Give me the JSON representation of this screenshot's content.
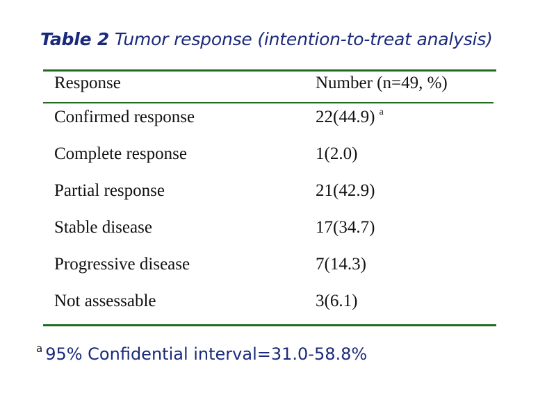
{
  "title": {
    "label": "Table 2",
    "text": "Tumor response (intention-to-treat analysis)"
  },
  "table": {
    "headers": [
      "Response",
      "Number (n=49, %)"
    ],
    "rows": [
      {
        "response": "Confirmed response",
        "number": "22(44.9)",
        "note": "a"
      },
      {
        "response": "Complete response",
        "number": "1(2.0)",
        "note": ""
      },
      {
        "response": "Partial response",
        "number": "21(42.9)",
        "note": ""
      },
      {
        "response": "Stable disease",
        "number": "17(34.7)",
        "note": ""
      },
      {
        "response": "Progressive disease",
        "number": "7(14.3)",
        "note": ""
      },
      {
        "response": "Not assessable",
        "number": "3(6.1)",
        "note": ""
      }
    ]
  },
  "footnote": {
    "mark": "a",
    "text": "95% Confidential interval=31.0-58.8%"
  },
  "colors": {
    "title": "#1a2a7a",
    "rules": "#1f6b1f"
  }
}
